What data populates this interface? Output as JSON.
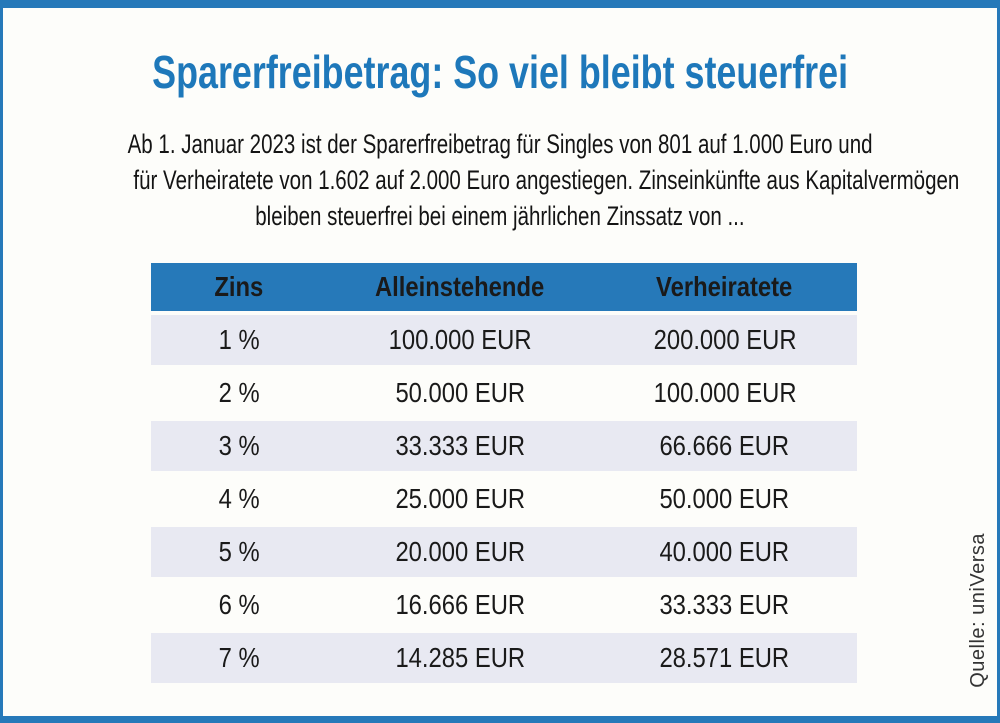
{
  "title": "Sparerfreibetrag: So viel bleibt steuerfrei",
  "subtitle": {
    "lines": [
      "Ab 1. Januar 2023 ist der Sparerfreibetrag für Singles von 801 auf 1.000 Euro und",
      "für Verheiratete von 1.602 auf 2.000 Euro angestiegen. Zinseinkünfte aus Kapitalvermögen",
      "bleiben steuerfrei bei einem jährlichen Zinssatz von ..."
    ]
  },
  "source": "Quelle: uniVersa",
  "colors": {
    "accent_blue": "#2679b9",
    "title_blue": "#1e78ba",
    "row_alt": "#e8e9f2",
    "header_text": "#ffffff",
    "body_text": "#1a1a1a"
  },
  "chart_data": {
    "type": "table",
    "title": "Sparerfreibetrag: So viel bleibt steuerfrei",
    "columns": [
      "Zins",
      "Alleinstehende",
      "Verheiratete"
    ],
    "rows": [
      [
        "1 %",
        "100.000 EUR",
        "200.000 EUR"
      ],
      [
        "2 %",
        "50.000 EUR",
        "100.000 EUR"
      ],
      [
        "3 %",
        "33.333 EUR",
        "66.666 EUR"
      ],
      [
        "4 %",
        "25.000 EUR",
        "50.000 EUR"
      ],
      [
        "5 %",
        "20.000 EUR",
        "40.000 EUR"
      ],
      [
        "6 %",
        "16.666 EUR",
        "33.333 EUR"
      ],
      [
        "7 %",
        "14.285 EUR",
        "28.571 EUR"
      ]
    ],
    "source": "Quelle: uniVersa"
  }
}
